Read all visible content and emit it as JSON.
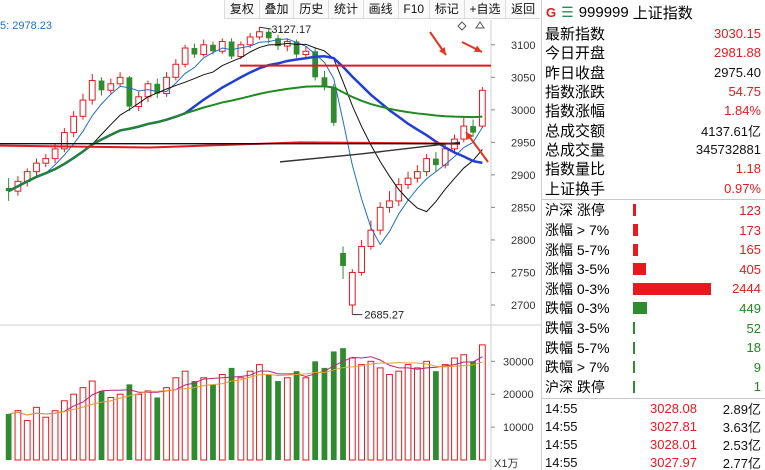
{
  "toolbar": {
    "buttons": [
      "复权",
      "叠加",
      "历史",
      "统计",
      "画线",
      "F10",
      "标记",
      "+自选",
      "返回"
    ]
  },
  "ma_label": "5: 2978.23",
  "chart": {
    "price_axis": [
      "3100",
      "3050",
      "3000",
      "2950",
      "2900",
      "2850",
      "2800",
      "2750",
      "2700"
    ],
    "volume_axis": [
      "30000",
      "20000",
      "10000"
    ],
    "volume_unit": "X1万",
    "high_label": "3127.17",
    "low_label": "2685.27",
    "colors": {
      "up": "#e8191e",
      "down": "#2e8b2e",
      "ma_blue": "#1f3fd6",
      "ma_green": "#1f8a1f",
      "ma_red": "#e0191e",
      "ma_dark": "#333333"
    }
  },
  "chart_data": {
    "type": "candlestick",
    "ylim": [
      2680,
      3135
    ],
    "high": 3127.17,
    "low": 2685.27,
    "candles": [
      {
        "o": 2880,
        "c": 2875,
        "h": 2895,
        "l": 2860
      },
      {
        "o": 2875,
        "c": 2890,
        "h": 2898,
        "l": 2868
      },
      {
        "o": 2890,
        "c": 2905,
        "h": 2910,
        "l": 2882
      },
      {
        "o": 2905,
        "c": 2918,
        "h": 2925,
        "l": 2898
      },
      {
        "o": 2918,
        "c": 2925,
        "h": 2932,
        "l": 2912
      },
      {
        "o": 2925,
        "c": 2940,
        "h": 2948,
        "l": 2918
      },
      {
        "o": 2940,
        "c": 2965,
        "h": 2972,
        "l": 2935
      },
      {
        "o": 2965,
        "c": 2990,
        "h": 2998,
        "l": 2958
      },
      {
        "o": 2990,
        "c": 3015,
        "h": 3025,
        "l": 2985
      },
      {
        "o": 3015,
        "c": 3045,
        "h": 3055,
        "l": 3008
      },
      {
        "o": 3045,
        "c": 3030,
        "h": 3050,
        "l": 3022
      },
      {
        "o": 3030,
        "c": 3040,
        "h": 3048,
        "l": 3025
      },
      {
        "o": 3040,
        "c": 3050,
        "h": 3058,
        "l": 3035
      },
      {
        "o": 3050,
        "c": 3005,
        "h": 3052,
        "l": 2998
      },
      {
        "o": 3005,
        "c": 3020,
        "h": 3028,
        "l": 2998
      },
      {
        "o": 3020,
        "c": 3040,
        "h": 3045,
        "l": 3012
      },
      {
        "o": 3040,
        "c": 3025,
        "h": 3048,
        "l": 3018
      },
      {
        "o": 3025,
        "c": 3050,
        "h": 3058,
        "l": 3020
      },
      {
        "o": 3050,
        "c": 3070,
        "h": 3078,
        "l": 3045
      },
      {
        "o": 3070,
        "c": 3095,
        "h": 3100,
        "l": 3065
      },
      {
        "o": 3095,
        "c": 3085,
        "h": 3102,
        "l": 3080
      },
      {
        "o": 3085,
        "c": 3100,
        "h": 3108,
        "l": 3082
      },
      {
        "o": 3100,
        "c": 3090,
        "h": 3105,
        "l": 3085
      },
      {
        "o": 3090,
        "c": 3105,
        "h": 3110,
        "l": 3086
      },
      {
        "o": 3105,
        "c": 3082,
        "h": 3110,
        "l": 3078
      },
      {
        "o": 3082,
        "c": 3100,
        "h": 3105,
        "l": 3078
      },
      {
        "o": 3100,
        "c": 3112,
        "h": 3118,
        "l": 3095
      },
      {
        "o": 3112,
        "c": 3120,
        "h": 3127.17,
        "l": 3108
      },
      {
        "o": 3120,
        "c": 3110,
        "h": 3124,
        "l": 3102
      },
      {
        "o": 3110,
        "c": 3098,
        "h": 3115,
        "l": 3092
      },
      {
        "o": 3098,
        "c": 3105,
        "h": 3110,
        "l": 3090
      },
      {
        "o": 3105,
        "c": 3085,
        "h": 3108,
        "l": 3080
      },
      {
        "o": 3085,
        "c": 3090,
        "h": 3098,
        "l": 3080
      },
      {
        "o": 3090,
        "c": 3050,
        "h": 3095,
        "l": 3045
      },
      {
        "o": 3050,
        "c": 3035,
        "h": 3060,
        "l": 3030
      },
      {
        "o": 3035,
        "c": 2980,
        "h": 3040,
        "l": 2975
      },
      {
        "o": 2780,
        "c": 2760,
        "h": 2790,
        "l": 2740
      },
      {
        "o": 2700,
        "c": 2750,
        "h": 2755,
        "l": 2685.27
      },
      {
        "o": 2750,
        "c": 2790,
        "h": 2800,
        "l": 2745
      },
      {
        "o": 2790,
        "c": 2815,
        "h": 2830,
        "l": 2785
      },
      {
        "o": 2815,
        "c": 2850,
        "h": 2858,
        "l": 2808
      },
      {
        "o": 2850,
        "c": 2860,
        "h": 2875,
        "l": 2842
      },
      {
        "o": 2860,
        "c": 2885,
        "h": 2895,
        "l": 2852
      },
      {
        "o": 2885,
        "c": 2895,
        "h": 2905,
        "l": 2878
      },
      {
        "o": 2895,
        "c": 2905,
        "h": 2915,
        "l": 2888
      },
      {
        "o": 2905,
        "c": 2925,
        "h": 2932,
        "l": 2898
      },
      {
        "o": 2925,
        "c": 2915,
        "h": 2935,
        "l": 2905
      },
      {
        "o": 2915,
        "c": 2940,
        "h": 2948,
        "l": 2910
      },
      {
        "o": 2940,
        "c": 2955,
        "h": 2962,
        "l": 2932
      },
      {
        "o": 2955,
        "c": 2975,
        "h": 2990,
        "l": 2950
      },
      {
        "o": 2975,
        "c": 2965,
        "h": 2985,
        "l": 2958
      },
      {
        "o": 2975,
        "c": 3030,
        "h": 3035,
        "l": 2972
      }
    ],
    "volumes": [
      14000,
      15000,
      12000,
      16000,
      13000,
      15000,
      18000,
      20000,
      22000,
      24000,
      21000,
      19000,
      20000,
      23000,
      20000,
      21000,
      19000,
      22000,
      25000,
      27000,
      24000,
      25000,
      23000,
      26000,
      28000,
      25000,
      27000,
      29000,
      26000,
      24000,
      25000,
      27000,
      25000,
      30000,
      28000,
      33000,
      34000,
      31000,
      29000,
      30000,
      28000,
      26000,
      27000,
      29000,
      28000,
      30000,
      27000,
      29000,
      31000,
      32000,
      30000,
      35000
    ],
    "hline": 3068
  },
  "panel": {
    "tag": "G",
    "menu_icon": "menu-icon",
    "code": "999999",
    "name": "上证指数",
    "stats": [
      {
        "label": "最新指数",
        "value": "3030.15",
        "color": "red"
      },
      {
        "label": "今日开盘",
        "value": "2981.88",
        "color": "red"
      },
      {
        "label": "昨日收盘",
        "value": "2975.40",
        "color": "blk"
      },
      {
        "label": "指数涨跌",
        "value": "54.75",
        "color": "red"
      },
      {
        "label": "指数涨幅",
        "value": "1.84%",
        "color": "red"
      },
      {
        "label": "总成交额",
        "value": "4137.61亿",
        "color": "blk"
      },
      {
        "label": "总成交量",
        "value": "345732881",
        "color": "blk"
      },
      {
        "label": "指数量比",
        "value": "1.18",
        "color": "red"
      },
      {
        "label": "上证换手",
        "value": "0.97%",
        "color": "red"
      }
    ],
    "distribution": [
      {
        "label": "沪深 涨停",
        "value": "123",
        "side": "up",
        "frac": 0.04
      },
      {
        "label": "涨幅 > 7%",
        "value": "173",
        "side": "up",
        "frac": 0.07
      },
      {
        "label": "涨幅 5-7%",
        "value": "165",
        "side": "up",
        "frac": 0.07
      },
      {
        "label": "涨幅 3-5%",
        "value": "405",
        "side": "up",
        "frac": 0.17
      },
      {
        "label": "涨幅 0-3%",
        "value": "2444",
        "side": "up",
        "frac": 1.0
      },
      {
        "label": "跌幅 0-3%",
        "value": "449",
        "side": "down",
        "frac": 0.18
      },
      {
        "label": "跌幅 3-5%",
        "value": "52",
        "side": "down",
        "frac": 0.02
      },
      {
        "label": "跌幅 5-7%",
        "value": "18",
        "side": "down",
        "frac": 0.01
      },
      {
        "label": "跌幅 > 7%",
        "value": "9",
        "side": "down",
        "frac": 0.01
      },
      {
        "label": "沪深 跌停",
        "value": "1",
        "side": "down",
        "frac": 0.01
      }
    ],
    "ticks": [
      {
        "time": "14:55",
        "price": "3028.08",
        "amount": "2.89亿"
      },
      {
        "time": "14:55",
        "price": "3027.81",
        "amount": "3.63亿"
      },
      {
        "time": "14:55",
        "price": "3028.01",
        "amount": "2.53亿"
      },
      {
        "time": "14:55",
        "price": "3027.97",
        "amount": "2.77亿"
      }
    ]
  }
}
